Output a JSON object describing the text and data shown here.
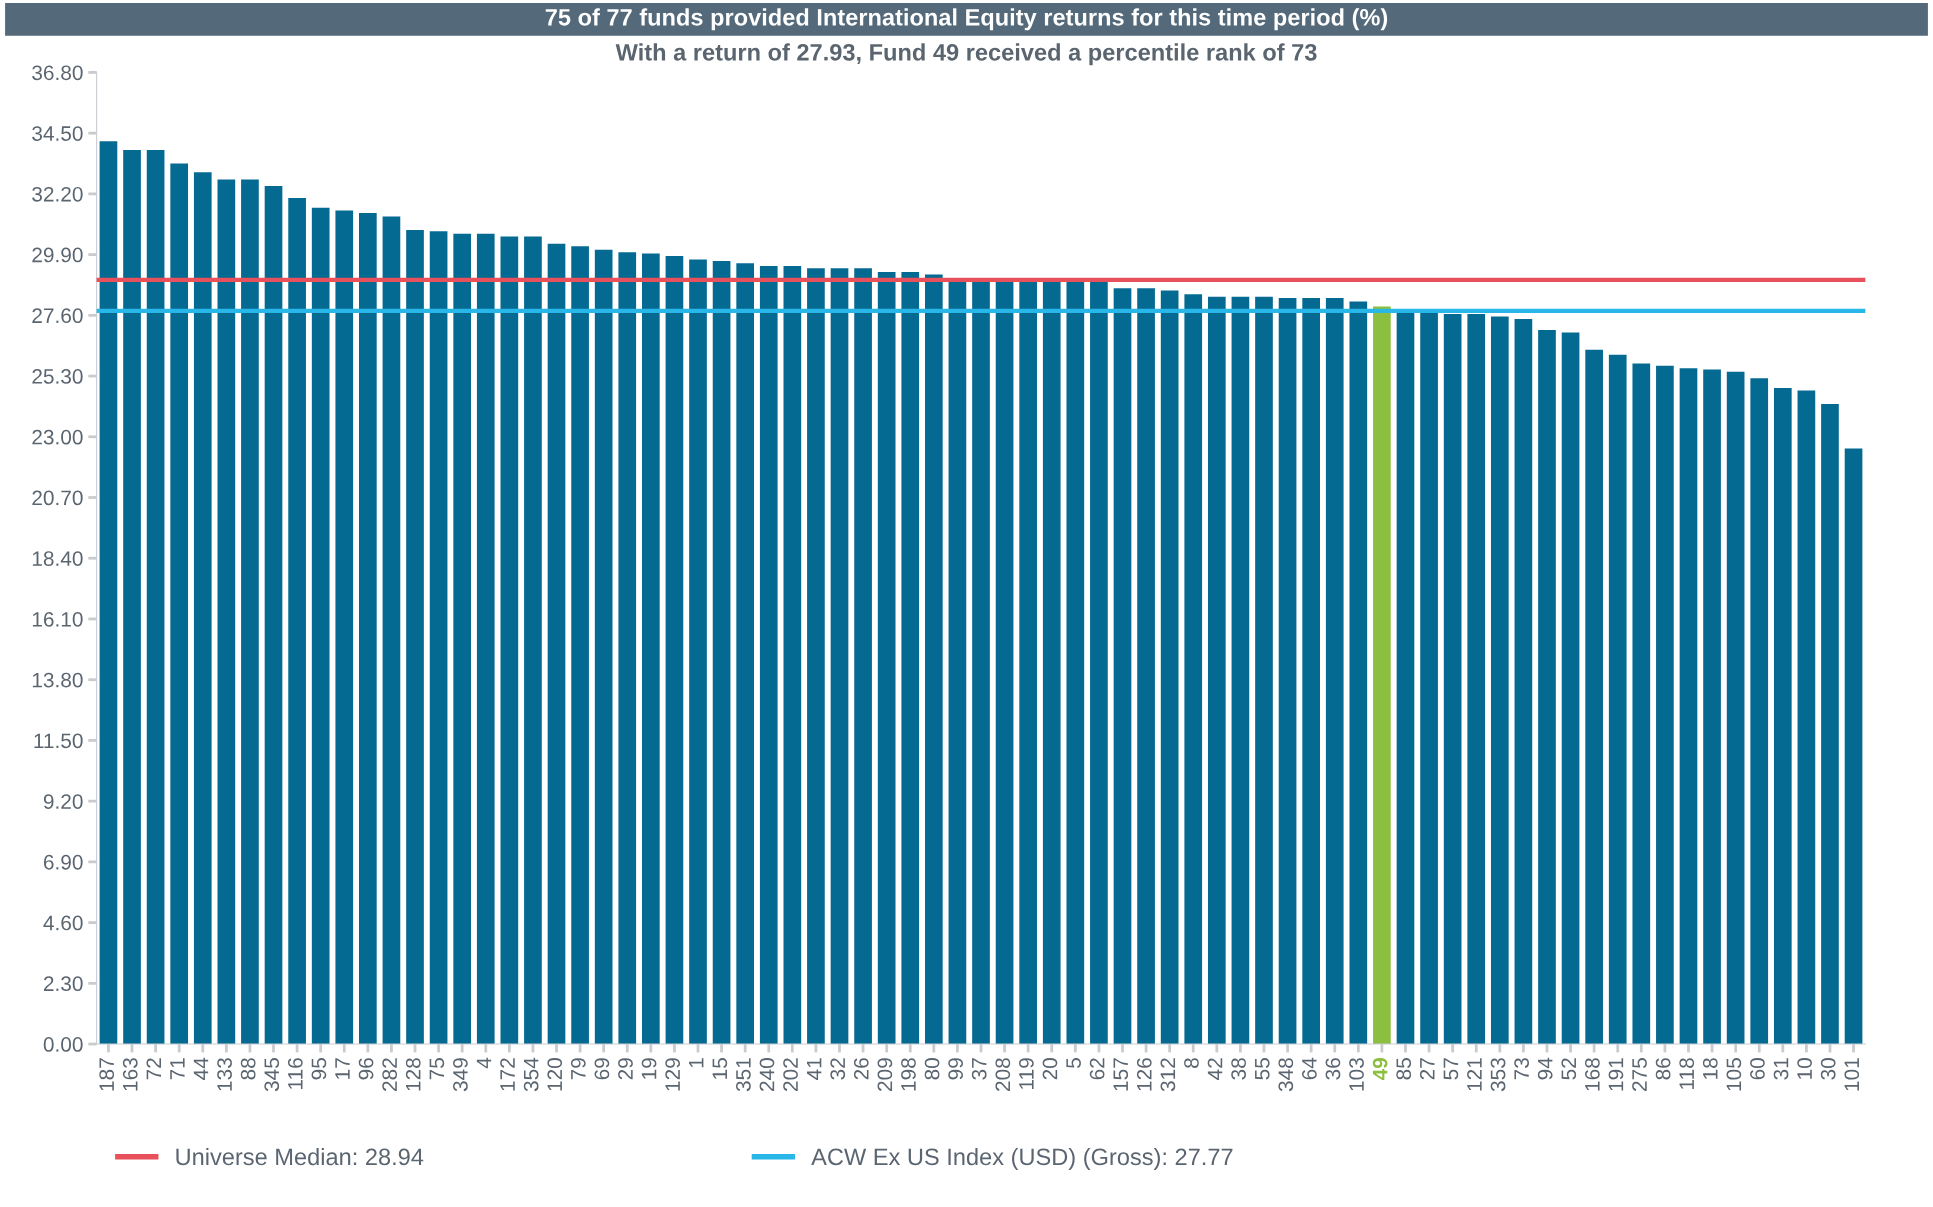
{
  "chart_data": {
    "type": "bar",
    "title": "75 of 77 funds provided International Equity returns for this time period (%)",
    "subtitle": "With a return of 27.93, Fund 49 received a percentile rank of 73",
    "categories": [
      "187",
      "163",
      "72",
      "71",
      "44",
      "133",
      "88",
      "345",
      "116",
      "95",
      "17",
      "96",
      "282",
      "128",
      "75",
      "349",
      "4",
      "172",
      "354",
      "120",
      "79",
      "69",
      "29",
      "19",
      "129",
      "1",
      "15",
      "351",
      "240",
      "202",
      "41",
      "32",
      "26",
      "209",
      "198",
      "80",
      "99",
      "37",
      "208",
      "119",
      "20",
      "5",
      "62",
      "157",
      "126",
      "312",
      "8",
      "42",
      "38",
      "55",
      "348",
      "64",
      "36",
      "103",
      "49",
      "85",
      "27",
      "57",
      "121",
      "353",
      "73",
      "94",
      "52",
      "168",
      "191",
      "275",
      "86",
      "118",
      "18",
      "105",
      "60",
      "31",
      "10",
      "30",
      "101"
    ],
    "values": [
      34.19,
      33.86,
      33.86,
      33.35,
      33.02,
      32.74,
      32.74,
      32.5,
      32.04,
      31.67,
      31.57,
      31.48,
      31.34,
      30.83,
      30.78,
      30.69,
      30.69,
      30.59,
      30.59,
      30.31,
      30.22,
      30.08,
      29.99,
      29.94,
      29.85,
      29.71,
      29.66,
      29.57,
      29.47,
      29.47,
      29.38,
      29.38,
      29.38,
      29.24,
      29.24,
      29.15,
      28.96,
      28.96,
      28.96,
      28.87,
      28.87,
      28.87,
      28.87,
      28.63,
      28.63,
      28.54,
      28.4,
      28.3,
      28.3,
      28.3,
      28.26,
      28.26,
      28.26,
      28.12,
      27.93,
      27.79,
      27.7,
      27.65,
      27.65,
      27.56,
      27.46,
      27.04,
      26.95,
      26.3,
      26.11,
      25.78,
      25.69,
      25.6,
      25.55,
      25.46,
      25.22,
      24.85,
      24.75,
      24.24,
      22.56
    ],
    "colors": [
      "#046a92",
      "#046a92",
      "#046a92",
      "#046a92",
      "#046a92",
      "#046a92",
      "#046a92",
      "#046a92",
      "#046a92",
      "#046a92",
      "#046a92",
      "#046a92",
      "#046a92",
      "#046a92",
      "#046a92",
      "#046a92",
      "#046a92",
      "#046a92",
      "#046a92",
      "#046a92",
      "#046a92",
      "#046a92",
      "#046a92",
      "#046a92",
      "#046a92",
      "#046a92",
      "#046a92",
      "#046a92",
      "#046a92",
      "#046a92",
      "#046a92",
      "#046a92",
      "#046a92",
      "#046a92",
      "#046a92",
      "#046a92",
      "#046a92",
      "#046a92",
      "#046a92",
      "#046a92",
      "#046a92",
      "#046a92",
      "#046a92",
      "#046a92",
      "#046a92",
      "#046a92",
      "#046a92",
      "#046a92",
      "#046a92",
      "#046a92",
      "#046a92",
      "#046a92",
      "#046a92",
      "#046a92",
      "#8cbf3f",
      "#046a92",
      "#046a92",
      "#046a92",
      "#046a92",
      "#046a92",
      "#046a92",
      "#046a92",
      "#046a92",
      "#046a92",
      "#046a92",
      "#046a92",
      "#046a92",
      "#046a92",
      "#046a92",
      "#046a92",
      "#046a92",
      "#046a92",
      "#046a92",
      "#046a92",
      "#046a92"
    ],
    "ylim": [
      0,
      36.8
    ],
    "yticks": [
      {
        "value": 0,
        "label": "0.00"
      },
      {
        "value": 2.3,
        "label": "2.30"
      },
      {
        "value": 4.6,
        "label": "4.60"
      },
      {
        "value": 6.9,
        "label": "6.90"
      },
      {
        "value": 9.2,
        "label": "9.20"
      },
      {
        "value": 11.5,
        "label": "11.50"
      },
      {
        "value": 13.8,
        "label": "13.80"
      },
      {
        "value": 16.1,
        "label": "16.10"
      },
      {
        "value": 18.4,
        "label": "18.40"
      },
      {
        "value": 20.7,
        "label": "20.70"
      },
      {
        "value": 23,
        "label": "23.00"
      },
      {
        "value": 25.3,
        "label": "25.30"
      },
      {
        "value": 27.6,
        "label": "27.60"
      },
      {
        "value": 29.9,
        "label": "29.90"
      },
      {
        "value": 32.2,
        "label": "32.20"
      },
      {
        "value": 34.5,
        "label": "34.50"
      },
      {
        "value": 36.8,
        "label": "36.80"
      }
    ],
    "ref_lines": [
      {
        "axis": "y",
        "value": 28.94,
        "label": "Universe Median: 28.94",
        "color": "#e8505b"
      },
      {
        "axis": "y",
        "value": 27.77,
        "label": "ACW Ex US Index (USD) (Gross): 27.77",
        "color": "#29b6e8"
      }
    ],
    "legend": "bottom",
    "grid": false
  }
}
